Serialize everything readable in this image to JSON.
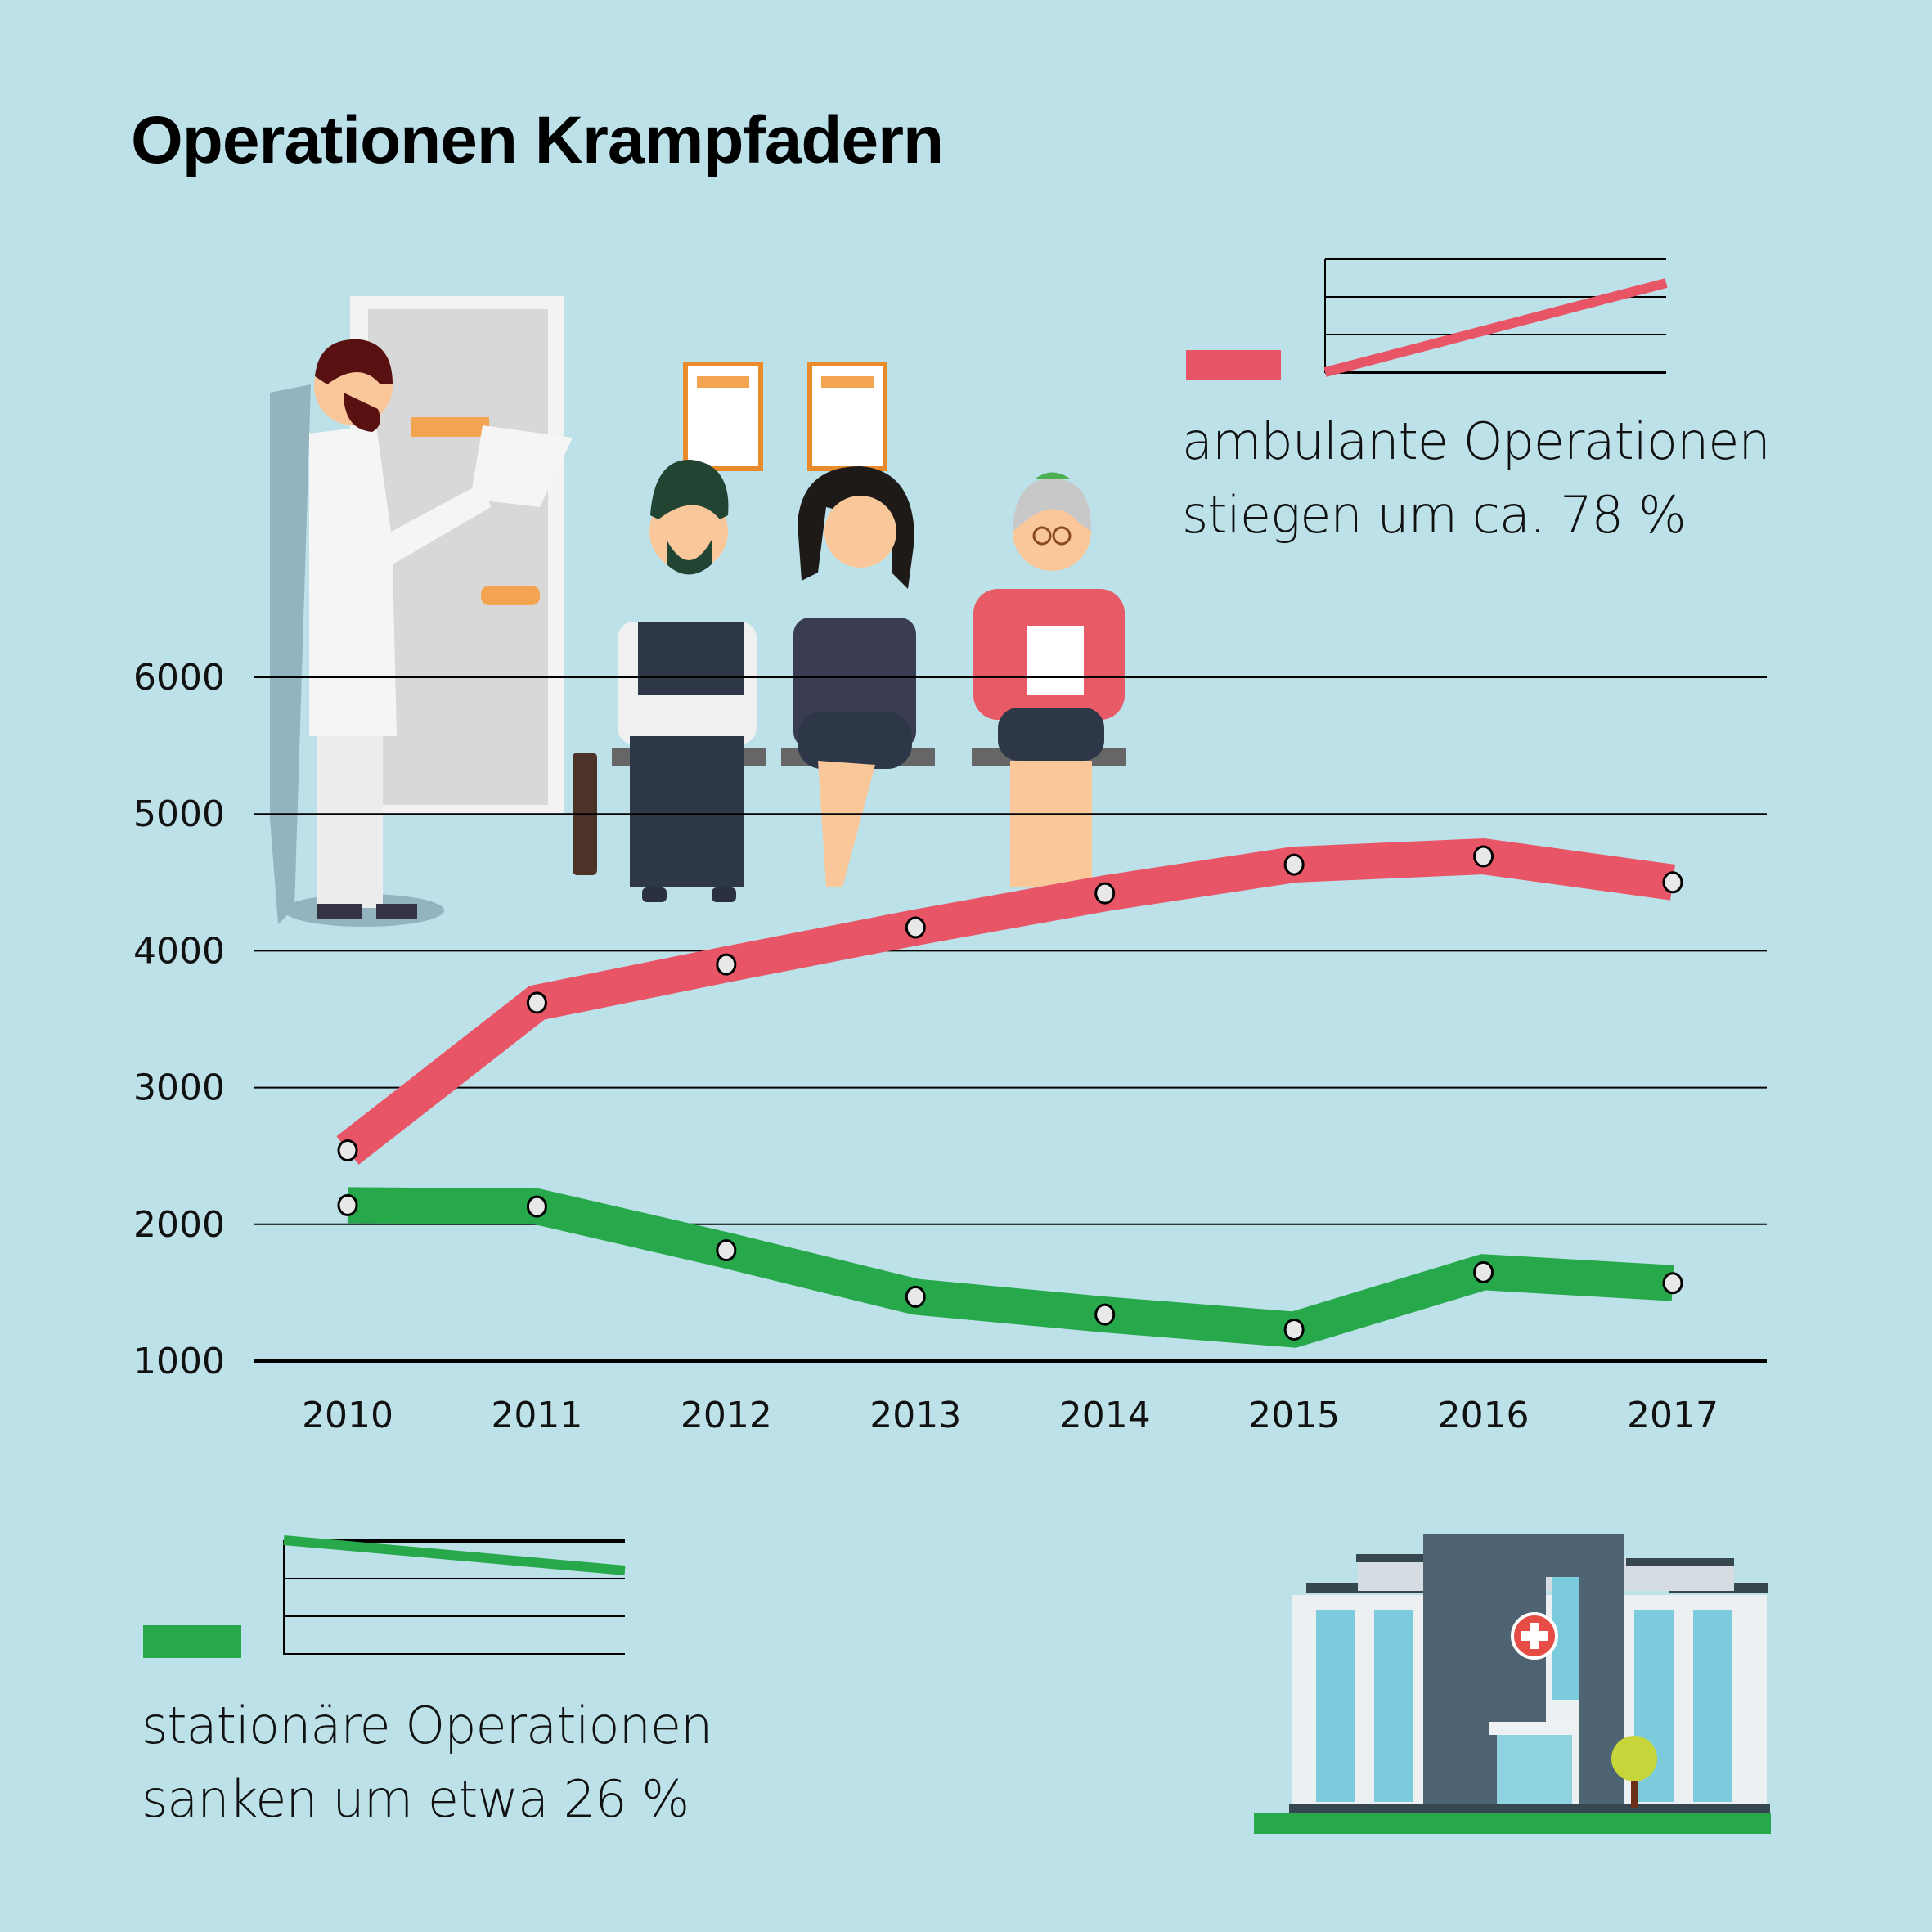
{
  "chart_data": {
    "type": "line",
    "title": "Operationen Krampfadern",
    "xlabel": "",
    "ylabel": "",
    "categories": [
      "2010",
      "2011",
      "2012",
      "2013",
      "2014",
      "2015",
      "2016",
      "2017"
    ],
    "ylim": [
      1000,
      6000
    ],
    "yticks": [
      6000,
      5000,
      4000,
      3000,
      2000,
      1000
    ],
    "grid": true,
    "series": [
      {
        "name": "ambulante Operationen",
        "color": "#e85566",
        "values": [
          2540,
          3620,
          3900,
          4170,
          4420,
          4630,
          4690,
          4500
        ]
      },
      {
        "name": "stationäre Operationen",
        "color": "#27a84a",
        "values": [
          2140,
          2130,
          1810,
          1470,
          1340,
          1230,
          1650,
          1570
        ]
      }
    ],
    "annotations": {
      "ambulant": [
        "ambulante Operationen",
        "stiegen um ca. 78 %"
      ],
      "stationaer": [
        "stationäre Operationen",
        "sanken um etwa 26 %"
      ]
    }
  },
  "colors": {
    "background": "#bde1e9",
    "ambulant": "#e85566",
    "stationaer": "#27a84a"
  }
}
